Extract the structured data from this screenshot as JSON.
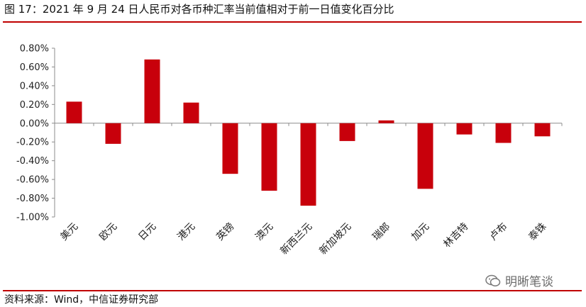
{
  "title": "图 17：2021 年 9 月 24 日人民币对各币种汇率当前值相对于前一日值变化百分比",
  "source": "资料来源：Wind，中信证券研究部",
  "watermark": "明晰笔谈",
  "colors": {
    "bar": "#c8000b",
    "rule": "#c00000"
  },
  "chart_data": {
    "type": "bar",
    "categories": [
      "美元",
      "欧元",
      "日元",
      "港元",
      "英镑",
      "澳元",
      "新西兰元",
      "新加坡元",
      "瑞郎",
      "加元",
      "林吉特",
      "卢布",
      "泰铢"
    ],
    "values": [
      0.23,
      -0.22,
      0.68,
      0.22,
      -0.54,
      -0.72,
      -0.88,
      -0.19,
      0.03,
      -0.7,
      -0.12,
      -0.21,
      -0.14
    ],
    "ylim": [
      -1.0,
      0.8
    ],
    "yticks": [
      "0.80%",
      "0.60%",
      "0.40%",
      "0.20%",
      "0.00%",
      "-0.20%",
      "-0.40%",
      "-0.60%",
      "-0.80%",
      "-1.00%"
    ],
    "grid": false,
    "xlabel": "",
    "ylabel": ""
  }
}
